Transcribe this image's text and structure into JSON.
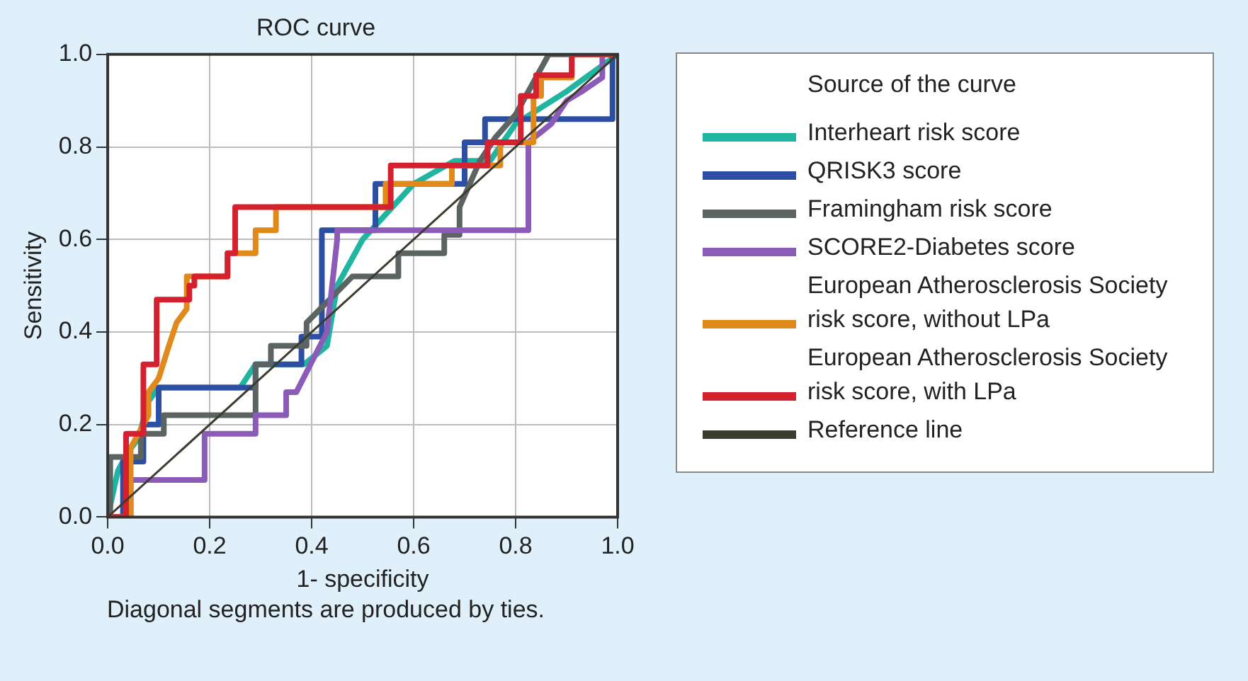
{
  "chart_data": {
    "type": "line",
    "title": "ROC curve",
    "xlabel": "1- specificity",
    "ylabel": "Sensitivity",
    "legend_title": "Source of the curve",
    "annotations": [
      "Diagonal segments are produced by ties."
    ],
    "xlim": [
      0,
      1
    ],
    "ylim": [
      0,
      1
    ],
    "xticks": [
      {
        "value": 0,
        "label": "0.0"
      },
      {
        "value": 0.2,
        "label": "0.2"
      },
      {
        "value": 0.4,
        "label": "0.4"
      },
      {
        "value": 0.6,
        "label": "0.6"
      },
      {
        "value": 0.8,
        "label": "0.8"
      },
      {
        "value": 1,
        "label": "1.0"
      }
    ],
    "yticks": [
      {
        "value": 0,
        "label": "0.0"
      },
      {
        "value": 0.2,
        "label": "0.2"
      },
      {
        "value": 0.4,
        "label": "0.4"
      },
      {
        "value": 0.6,
        "label": "0.6"
      },
      {
        "value": 0.8,
        "label": "0.8"
      },
      {
        "value": 1,
        "label": "1.0"
      }
    ],
    "grid": true,
    "legend": "right",
    "marker": "none",
    "line_style": "solid",
    "series": [
      {
        "name": "Interheart risk score",
        "color": "#1fb5a0",
        "x": [
          0,
          0.02,
          0.04,
          0.06,
          0.08,
          0.1,
          0.26,
          0.29,
          0.385,
          0.43,
          0.45,
          0.5,
          0.6,
          0.68,
          0.75,
          0.8,
          0.9,
          1
        ],
        "values": [
          0,
          0.1,
          0.14,
          0.17,
          0.25,
          0.28,
          0.28,
          0.33,
          0.33,
          0.37,
          0.5,
          0.6,
          0.72,
          0.77,
          0.77,
          0.85,
          0.92,
          1
        ]
      },
      {
        "name": "QRISK3 score",
        "color": "#2c4fa3",
        "x": [
          0,
          0.03,
          0.03,
          0.07,
          0.07,
          0.1,
          0.1,
          0.29,
          0.29,
          0.38,
          0.38,
          0.42,
          0.42,
          0.525,
          0.525,
          0.7,
          0.7,
          0.74,
          0.74,
          0.77,
          0.77,
          0.99,
          0.99,
          1
        ],
        "values": [
          0,
          0,
          0.12,
          0.12,
          0.2,
          0.2,
          0.28,
          0.28,
          0.33,
          0.33,
          0.39,
          0.39,
          0.62,
          0.62,
          0.72,
          0.72,
          0.81,
          0.81,
          0.86,
          0.86,
          0.86,
          0.86,
          1,
          1
        ]
      },
      {
        "name": "Framingham risk score",
        "color": "#5b6462",
        "x": [
          0,
          0.005,
          0.005,
          0.065,
          0.065,
          0.11,
          0.11,
          0.29,
          0.29,
          0.32,
          0.32,
          0.39,
          0.39,
          0.48,
          0.57,
          0.57,
          0.66,
          0.66,
          0.69,
          0.69,
          0.73,
          0.76,
          0.8,
          0.84,
          0.865,
          1
        ],
        "values": [
          0,
          0,
          0.13,
          0.13,
          0.18,
          0.18,
          0.22,
          0.22,
          0.33,
          0.33,
          0.37,
          0.37,
          0.42,
          0.52,
          0.52,
          0.57,
          0.57,
          0.61,
          0.61,
          0.67,
          0.77,
          0.82,
          0.87,
          0.95,
          1,
          1
        ]
      },
      {
        "name": "SCORE2-Diabetes score",
        "color": "#8a5cb8",
        "x": [
          0,
          0.045,
          0.045,
          0.19,
          0.19,
          0.29,
          0.29,
          0.35,
          0.35,
          0.37,
          0.43,
          0.45,
          0.45,
          0.825,
          0.825,
          0.87,
          0.9,
          0.93,
          0.97,
          0.97,
          1
        ],
        "values": [
          0,
          0,
          0.08,
          0.08,
          0.18,
          0.18,
          0.22,
          0.22,
          0.27,
          0.27,
          0.4,
          0.6,
          0.62,
          0.62,
          0.81,
          0.85,
          0.9,
          0.92,
          0.95,
          1,
          1
        ]
      },
      {
        "name": "European Atherosclerosis Society risk score, without LPa",
        "color": "#e08a1e",
        "x": [
          0,
          0.045,
          0.045,
          0.08,
          0.08,
          0.1,
          0.12,
          0.135,
          0.155,
          0.155,
          0.235,
          0.235,
          0.29,
          0.29,
          0.33,
          0.33,
          0.545,
          0.545,
          0.675,
          0.675,
          0.77,
          0.77,
          0.835,
          0.835,
          0.85,
          0.85,
          0.91,
          0.91,
          1
        ],
        "values": [
          0,
          0,
          0.15,
          0.22,
          0.27,
          0.3,
          0.37,
          0.42,
          0.45,
          0.52,
          0.52,
          0.57,
          0.57,
          0.62,
          0.62,
          0.67,
          0.67,
          0.72,
          0.72,
          0.76,
          0.76,
          0.81,
          0.81,
          0.91,
          0.91,
          0.95,
          0.95,
          1,
          1
        ]
      },
      {
        "name": "European Atherosclerosis Society risk score, with LPa",
        "color": "#d4202f",
        "x": [
          0,
          0.036,
          0.036,
          0.07,
          0.07,
          0.096,
          0.096,
          0.16,
          0.16,
          0.17,
          0.17,
          0.235,
          0.235,
          0.25,
          0.25,
          0.555,
          0.555,
          0.745,
          0.745,
          0.81,
          0.81,
          0.84,
          0.84,
          0.91,
          0.91,
          1
        ],
        "values": [
          0,
          0,
          0.18,
          0.18,
          0.33,
          0.33,
          0.47,
          0.47,
          0.5,
          0.5,
          0.52,
          0.52,
          0.57,
          0.57,
          0.67,
          0.67,
          0.76,
          0.76,
          0.81,
          0.81,
          0.91,
          0.91,
          0.955,
          0.955,
          1,
          1
        ]
      },
      {
        "name": "Reference line",
        "color": "#3b3b2e",
        "x": [
          0,
          1
        ],
        "values": [
          0,
          1
        ]
      }
    ]
  }
}
